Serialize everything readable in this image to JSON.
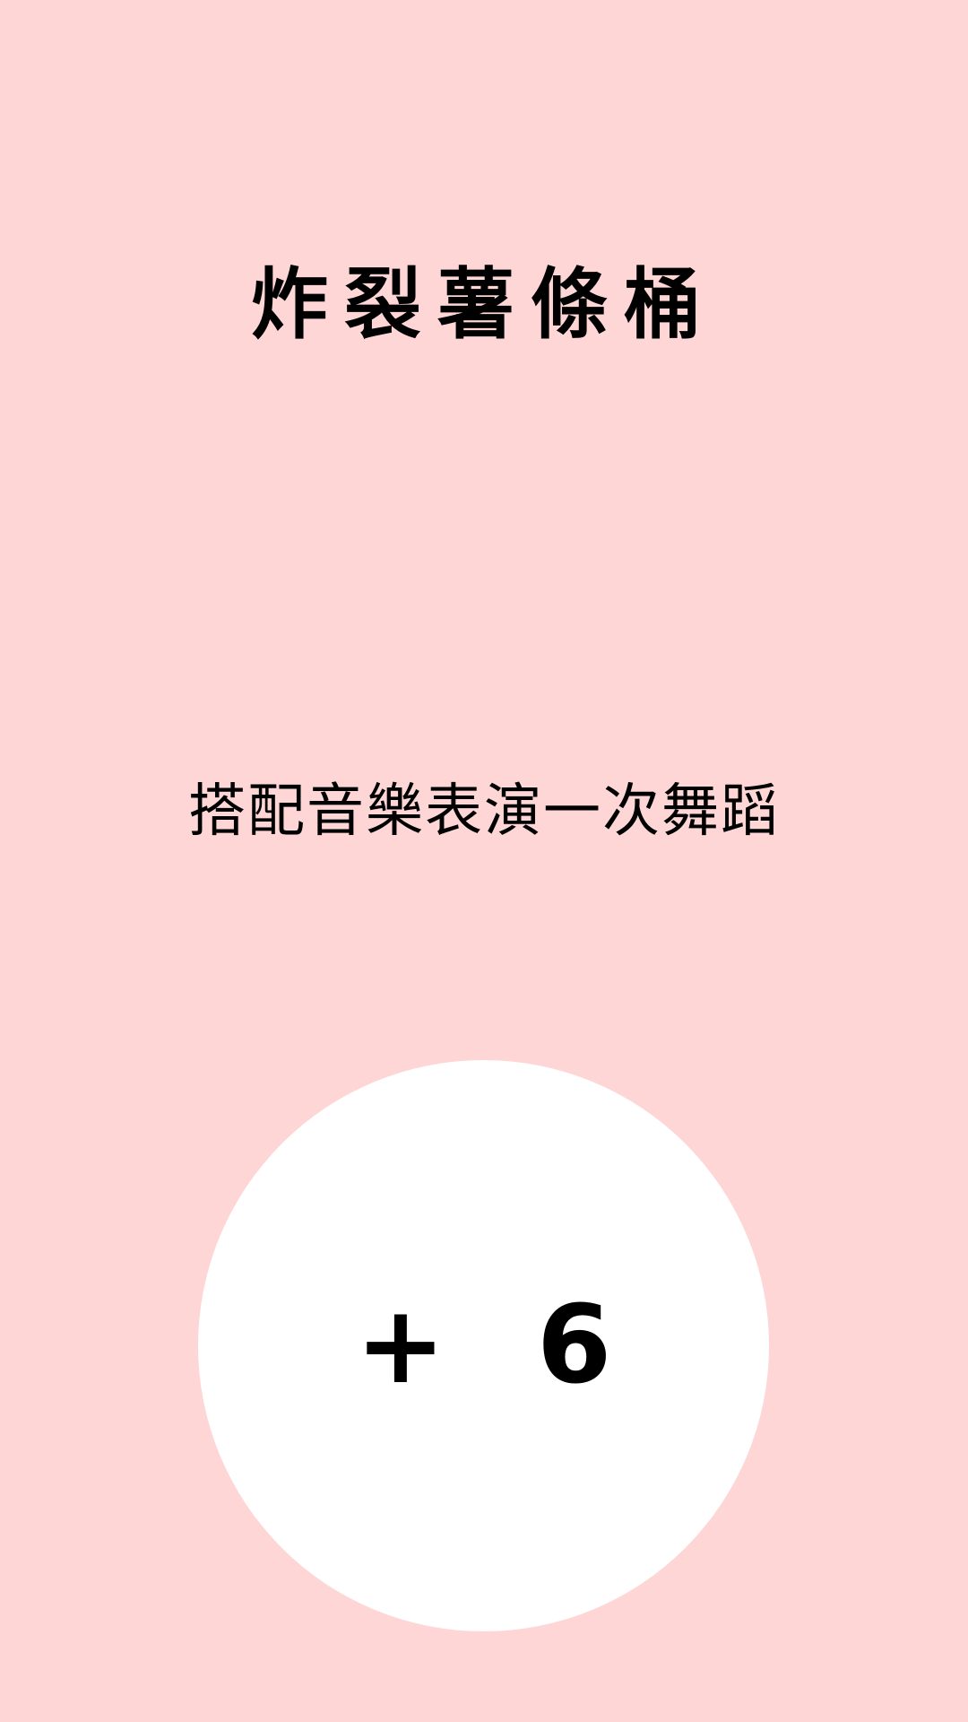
{
  "card": {
    "title": "炸裂薯條桶",
    "instruction": "搭配音樂表演一次舞蹈",
    "score": "+ 6"
  },
  "colors": {
    "background": "#FED6D6",
    "circle": "#FFFFFF",
    "text": "#000000"
  }
}
